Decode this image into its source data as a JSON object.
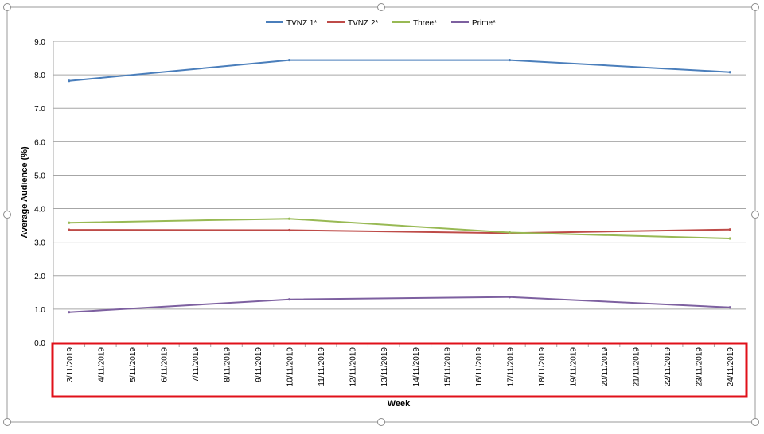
{
  "chart_data": {
    "type": "line",
    "xlabel": "Week",
    "ylabel": "Average Audience (%)",
    "ylim": [
      0,
      9
    ],
    "yticks": [
      "0.0",
      "1.0",
      "2.0",
      "3.0",
      "4.0",
      "5.0",
      "6.0",
      "7.0",
      "8.0",
      "9.0"
    ],
    "grid": true,
    "legend_position": "top",
    "categories": [
      "3/11/2019",
      "4/11/2019",
      "5/11/2019",
      "6/11/2019",
      "7/11/2019",
      "8/11/2019",
      "9/11/2019",
      "10/11/2019",
      "11/11/2019",
      "12/11/2019",
      "13/11/2019",
      "14/11/2019",
      "15/11/2019",
      "16/11/2019",
      "17/11/2019",
      "18/11/2019",
      "19/11/2019",
      "20/11/2019",
      "21/11/2019",
      "22/11/2019",
      "23/11/2019",
      "24/11/2019"
    ],
    "series": [
      {
        "name": "TVNZ 1*",
        "color": "#4a7ebb",
        "points": [
          [
            "3/11/2019",
            7.82
          ],
          [
            "10/11/2019",
            8.44
          ],
          [
            "17/11/2019",
            8.44
          ],
          [
            "24/11/2019",
            8.08
          ]
        ]
      },
      {
        "name": "TVNZ 2*",
        "color": "#be4b48",
        "points": [
          [
            "3/11/2019",
            3.37
          ],
          [
            "10/11/2019",
            3.36
          ],
          [
            "17/11/2019",
            3.27
          ],
          [
            "24/11/2019",
            3.38
          ]
        ]
      },
      {
        "name": "Three*",
        "color": "#98b954",
        "points": [
          [
            "3/11/2019",
            3.58
          ],
          [
            "10/11/2019",
            3.7
          ],
          [
            "17/11/2019",
            3.29
          ],
          [
            "24/11/2019",
            3.11
          ]
        ]
      },
      {
        "name": "Prime*",
        "color": "#7d60a0",
        "points": [
          [
            "3/11/2019",
            0.91
          ],
          [
            "10/11/2019",
            1.29
          ],
          [
            "17/11/2019",
            1.36
          ],
          [
            "24/11/2019",
            1.05
          ]
        ]
      }
    ]
  }
}
